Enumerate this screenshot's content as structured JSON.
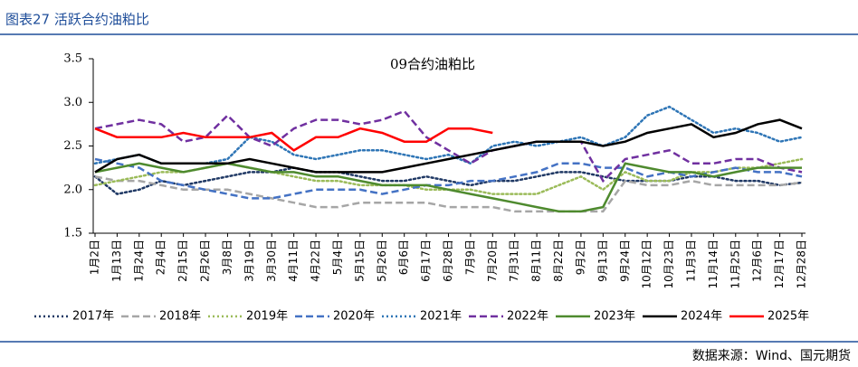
{
  "header": {
    "title": "图表27 活跃合约油粕比"
  },
  "footer": {
    "source": "数据来源：Wind、国元期货"
  },
  "chart_data": {
    "type": "line",
    "title": "09合约油粕比",
    "categories": [
      "1月2日",
      "1月13日",
      "1月24日",
      "2月4日",
      "2月15日",
      "2月26日",
      "3月8日",
      "3月19日",
      "3月30日",
      "4月11日",
      "4月22日",
      "5月4日",
      "5月15日",
      "5月26日",
      "6月6日",
      "6月17日",
      "6月28日",
      "7月9日",
      "7月20日",
      "7月31日",
      "8月11日",
      "8月22日",
      "9月2日",
      "9月13日",
      "9月24日",
      "10月12日",
      "10月23日",
      "11月3日",
      "11月14日",
      "11月25日",
      "12月6日",
      "12月17日",
      "12月28日"
    ],
    "ylim": [
      1.5,
      3.5
    ],
    "yticks": [
      1.5,
      {
        "value": 2,
        "label": "2.0"
      },
      2.5,
      {
        "value": 3,
        "label": "3.0"
      },
      3.5
    ],
    "legend": "bottom",
    "series": [
      {
        "name": "2017年",
        "color": "#1f3864",
        "dash": "dotted",
        "values": [
          2.15,
          1.95,
          2.0,
          2.1,
          2.05,
          2.1,
          2.15,
          2.2,
          2.2,
          2.25,
          2.2,
          2.2,
          2.15,
          2.1,
          2.1,
          2.15,
          2.1,
          2.05,
          2.1,
          2.1,
          2.15,
          2.2,
          2.2,
          2.15,
          2.1,
          2.1,
          2.1,
          2.15,
          2.15,
          2.1,
          2.1,
          2.05,
          2.08
        ]
      },
      {
        "name": "2018年",
        "color": "#a6a6a6",
        "dash": "dashed",
        "values": [
          2.15,
          2.1,
          2.1,
          2.05,
          2.0,
          2.0,
          2.0,
          1.95,
          1.9,
          1.85,
          1.8,
          1.8,
          1.85,
          1.85,
          1.85,
          1.85,
          1.8,
          1.8,
          1.8,
          1.75,
          1.75,
          1.75,
          1.75,
          1.75,
          2.1,
          2.05,
          2.05,
          2.1,
          2.05,
          2.05,
          2.05,
          2.05,
          2.08
        ]
      },
      {
        "name": "2019年",
        "color": "#9bbb59",
        "dash": "dotted",
        "values": [
          2.05,
          2.1,
          2.15,
          2.2,
          2.2,
          2.25,
          2.3,
          2.25,
          2.2,
          2.15,
          2.1,
          2.1,
          2.05,
          2.05,
          2.05,
          2.0,
          2.0,
          2.0,
          1.95,
          1.95,
          1.95,
          2.05,
          2.15,
          2.0,
          2.2,
          2.1,
          2.1,
          2.2,
          2.2,
          2.25,
          2.25,
          2.3,
          2.35
        ]
      },
      {
        "name": "2020年",
        "color": "#4472c4",
        "dash": "dashed",
        "values": [
          2.35,
          2.3,
          2.25,
          2.1,
          2.05,
          2.0,
          1.95,
          1.9,
          1.9,
          1.95,
          2.0,
          2.0,
          2.0,
          1.95,
          2.0,
          2.05,
          2.05,
          2.1,
          2.1,
          2.15,
          2.2,
          2.3,
          2.3,
          2.25,
          2.25,
          2.15,
          2.2,
          2.15,
          2.2,
          2.25,
          2.2,
          2.2,
          2.15
        ]
      },
      {
        "name": "2021年",
        "color": "#2e75b6",
        "dash": "dotted",
        "values": [
          2.3,
          2.35,
          2.4,
          2.3,
          2.3,
          2.3,
          2.35,
          2.6,
          2.55,
          2.4,
          2.35,
          2.4,
          2.45,
          2.45,
          2.4,
          2.35,
          2.4,
          2.3,
          2.5,
          2.55,
          2.5,
          2.55,
          2.6,
          2.5,
          2.6,
          2.85,
          2.95,
          2.8,
          2.65,
          2.7,
          2.65,
          2.55,
          2.6
        ]
      },
      {
        "name": "2022年",
        "color": "#7030a0",
        "dash": "dashed",
        "values": [
          2.7,
          2.75,
          2.8,
          2.75,
          2.55,
          2.6,
          2.85,
          2.6,
          2.5,
          2.7,
          2.8,
          2.8,
          2.75,
          2.8,
          2.9,
          2.6,
          2.45,
          2.3,
          2.45,
          2.5,
          2.55,
          2.55,
          2.55,
          2.1,
          2.35,
          2.4,
          2.45,
          2.3,
          2.3,
          2.35,
          2.35,
          2.25,
          2.2
        ]
      },
      {
        "name": "2023年",
        "color": "#4e8a2e",
        "dash": "solid",
        "values": [
          2.2,
          2.25,
          2.3,
          2.25,
          2.2,
          2.25,
          2.3,
          2.25,
          2.2,
          2.2,
          2.15,
          2.15,
          2.1,
          2.05,
          2.05,
          2.05,
          2.0,
          1.95,
          1.9,
          1.85,
          1.8,
          1.75,
          1.75,
          1.8,
          2.3,
          2.25,
          2.2,
          2.2,
          2.15,
          2.2,
          2.25,
          2.25,
          2.25
        ]
      },
      {
        "name": "2024年",
        "color": "#000000",
        "dash": "solid",
        "values": [
          2.2,
          2.35,
          2.4,
          2.3,
          2.3,
          2.3,
          2.3,
          2.35,
          2.3,
          2.25,
          2.2,
          2.2,
          2.2,
          2.2,
          2.25,
          2.3,
          2.35,
          2.4,
          2.45,
          2.5,
          2.55,
          2.55,
          2.55,
          2.5,
          2.55,
          2.65,
          2.7,
          2.75,
          2.6,
          2.65,
          2.75,
          2.8,
          2.7
        ]
      },
      {
        "name": "2025年",
        "color": "#ff0000",
        "dash": "solid",
        "values": [
          2.7,
          2.6,
          2.6,
          2.6,
          2.65,
          2.6,
          2.6,
          2.6,
          2.65,
          2.45,
          2.6,
          2.6,
          2.7,
          2.65,
          2.55,
          2.55,
          2.7,
          2.7,
          2.65,
          null,
          null,
          null,
          null,
          null,
          null,
          null,
          null,
          null,
          null,
          null,
          null,
          null,
          null
        ]
      }
    ]
  }
}
